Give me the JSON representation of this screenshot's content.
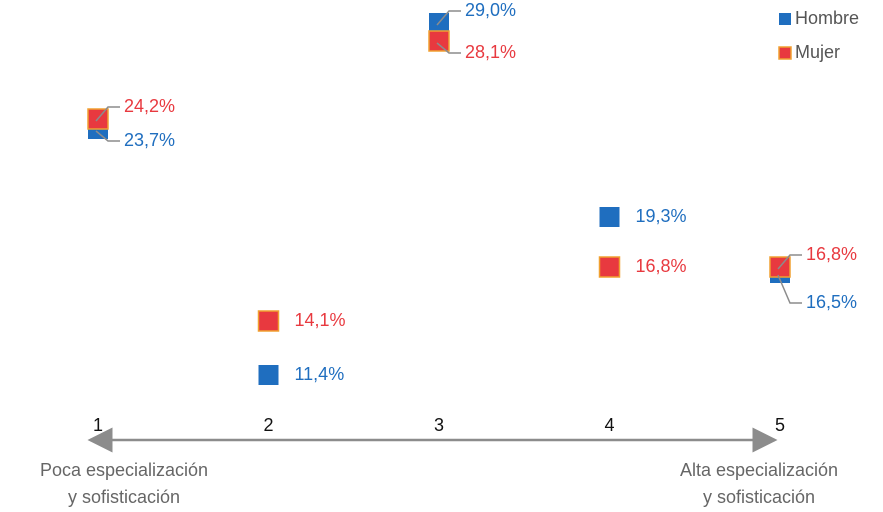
{
  "chart_data": {
    "type": "dot",
    "categories": [
      "1",
      "2",
      "3",
      "4",
      "5"
    ],
    "ylim": [
      10,
      30
    ],
    "series": [
      {
        "name": "Hombre",
        "color": "#1f6ebf",
        "values": [
          23.7,
          11.4,
          29.0,
          19.3,
          16.5
        ],
        "value_labels": [
          "23,7%",
          "11,4%",
          "29,0%",
          "19,3%",
          "16,5%"
        ]
      },
      {
        "name": "Mujer",
        "color": "#e8393f",
        "values": [
          24.2,
          14.1,
          28.1,
          16.8,
          16.8
        ],
        "value_labels": [
          "24,2%",
          "14,1%",
          "28,1%",
          "16,8%",
          "16,8%"
        ]
      }
    ],
    "axis_start_label": [
      "Poca especialización",
      "y sofisticación"
    ],
    "axis_end_label": [
      "Alta especialización",
      "y sofisticación"
    ],
    "legend": "top-right"
  }
}
